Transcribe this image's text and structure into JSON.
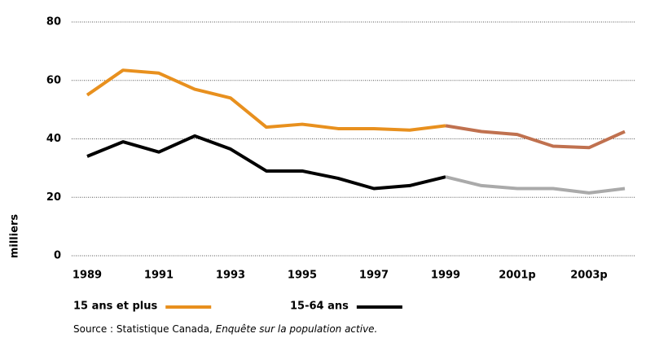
{
  "chart_data": {
    "type": "line",
    "y_label": "milliers",
    "categories": [
      "1989",
      null,
      "1991",
      null,
      "1993",
      null,
      "1995",
      null,
      "1997",
      null,
      "1999",
      null,
      "2001p",
      null,
      "2003p",
      null
    ],
    "series": [
      {
        "name": "15 ans et plus",
        "color": "#e8901e",
        "color_after_split": "#c0714f",
        "values": [
          55,
          63.5,
          62.5,
          57,
          54,
          44,
          45,
          43.5,
          43.5,
          43,
          44.5,
          42.5,
          41.5,
          37.5,
          37,
          42.5
        ]
      },
      {
        "name": "15-64 ans",
        "color": "#000000",
        "color_after_split": "#aaaaaa",
        "values": [
          34,
          39,
          35.5,
          41,
          36.5,
          29,
          29,
          26.5,
          23,
          24,
          27,
          24,
          23,
          23,
          21.5,
          23
        ]
      }
    ],
    "split_index": 10,
    "ylim": [
      0,
      80
    ],
    "yticks": [
      0,
      20,
      40,
      60,
      80
    ],
    "grid": true,
    "legend": "bottom",
    "source": {
      "text": "Source : Statistique Canada, ",
      "publication": "Enquête sur la population active."
    }
  }
}
